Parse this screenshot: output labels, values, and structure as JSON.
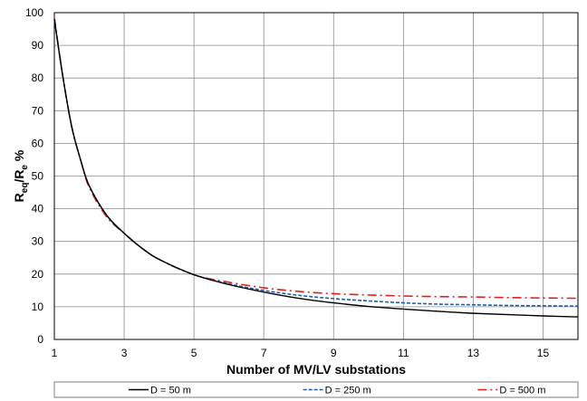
{
  "chart_data": {
    "type": "line",
    "title": "",
    "xlabel": "Number of MV/LV substations",
    "ylabel": {
      "base": "R",
      "sub1": "eq",
      "mid": "/R",
      "sub2": "e",
      "tail": " %"
    },
    "xlim": [
      1,
      16
    ],
    "ylim": [
      0,
      100
    ],
    "xticks": [
      1,
      3,
      5,
      7,
      9,
      11,
      13,
      15
    ],
    "yticks": [
      0,
      10,
      20,
      30,
      40,
      50,
      60,
      70,
      80,
      90,
      100
    ],
    "grid": true,
    "legend_position": "bottom",
    "x": [
      1,
      1.25,
      1.5,
      1.75,
      2,
      2.5,
      3,
      3.5,
      4,
      5,
      6,
      7,
      8,
      9,
      10,
      11,
      12,
      13,
      14,
      15,
      16
    ],
    "series": [
      {
        "name": "D = 50 m",
        "color": "#000000",
        "dash": "solid",
        "values": [
          98,
          80,
          65,
          55,
          47,
          38,
          32.5,
          28,
          24.5,
          19.8,
          16.8,
          14.5,
          12.6,
          11.2,
          10.1,
          9.3,
          8.6,
          8.0,
          7.6,
          7.2,
          6.9
        ]
      },
      {
        "name": "D = 250 m",
        "color": "#1f5fa8",
        "dash": "dashed",
        "values": [
          98,
          80,
          65,
          55,
          47,
          38,
          32.5,
          28,
          24.5,
          19.8,
          17.0,
          15.0,
          13.5,
          12.5,
          11.8,
          11.2,
          10.8,
          10.6,
          10.4,
          10.3,
          10.2
        ]
      },
      {
        "name": "D = 500 m",
        "color": "#e02020",
        "dash": "dashdot",
        "values": [
          98.5,
          80,
          65,
          55,
          46.5,
          37.5,
          32.5,
          28,
          24.5,
          19.8,
          17.5,
          15.8,
          14.7,
          14.0,
          13.6,
          13.3,
          13.1,
          13.0,
          12.8,
          12.7,
          12.6
        ]
      }
    ]
  }
}
